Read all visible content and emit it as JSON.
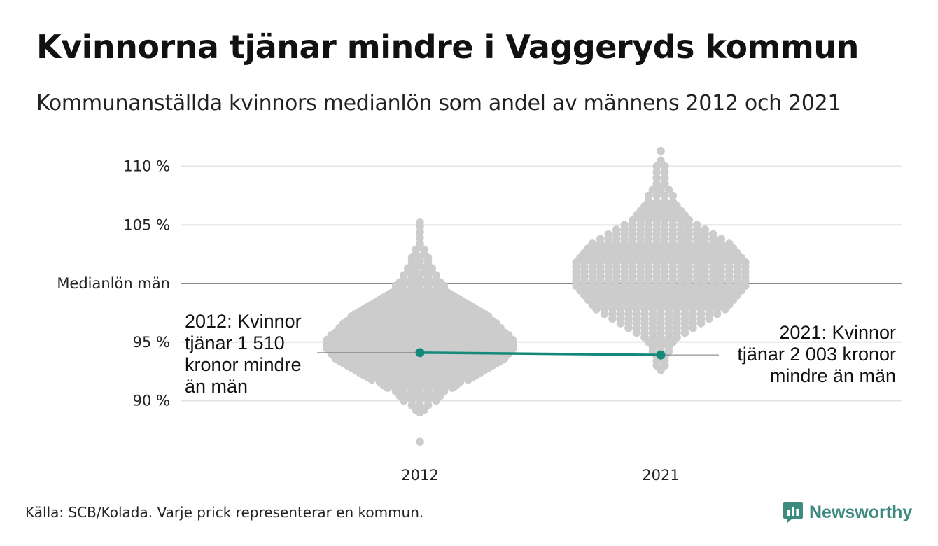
{
  "header": {
    "title": "Kvinnorna tjänar mindre i Vaggeryds kommun",
    "subtitle": "Kommunanställda kvinnors medianlön som andel av männens 2012 och 2021"
  },
  "footer": {
    "source": "Källa: SCB/Kolada. Varje prick representerar en kommun.",
    "brand": "Newsworthy",
    "brand_icon": "newsworthy-logo-icon",
    "brand_color": "#3d8a7e"
  },
  "chart_data": {
    "type": "scatter",
    "subtype": "beeswarm",
    "categories": [
      "2012",
      "2021"
    ],
    "y_axis": {
      "range": [
        86,
        111.5
      ],
      "ticks": [
        {
          "value": 90,
          "label": "90 %"
        },
        {
          "value": 95,
          "label": "95 %"
        },
        {
          "value": 100,
          "label": "Medianlön män"
        },
        {
          "value": 105,
          "label": "105 %"
        },
        {
          "value": 110,
          "label": "110 %"
        }
      ],
      "grid": true,
      "reference_line": 100
    },
    "highlight": {
      "municipality": "Vaggeryd",
      "color": "#14897a",
      "points": [
        {
          "x": "2012",
          "y": 94.1
        },
        {
          "x": "2021",
          "y": 93.9
        }
      ]
    },
    "annotations": [
      {
        "x": "2012",
        "lines": [
          "2012: Kvinnor",
          "tjänar 1 510",
          "kronor mindre",
          "än män"
        ]
      },
      {
        "x": "2021",
        "lines": [
          "2021: Kvinnor",
          "tjänar 2 003 kronor",
          "mindre än män"
        ]
      }
    ],
    "dot_color": "#cccccc",
    "series": [
      {
        "category": "2012",
        "values": [
          86.5,
          89.0,
          89.2,
          89.6,
          90.0,
          90.4,
          90.8,
          91.1,
          91.3,
          91.6,
          91.8,
          92.0,
          92.2,
          92.4,
          92.6,
          92.8,
          93.0,
          93.2,
          93.4,
          93.6,
          93.8,
          94.0,
          94.2,
          94.4,
          94.6,
          94.8,
          95.0,
          95.2,
          95.4,
          95.6,
          95.8,
          96.0,
          96.2,
          96.4,
          96.6,
          96.8,
          97.0,
          97.2,
          97.4,
          97.6,
          97.8,
          98.0,
          98.2,
          98.4,
          98.6,
          98.8,
          99.0,
          99.2,
          99.5,
          99.8,
          100.1,
          100.4,
          100.7,
          101.0,
          101.3,
          101.6,
          101.9,
          102.2,
          102.5,
          102.9,
          103.4,
          103.9,
          104.4,
          104.9,
          105.2
        ],
        "counts": [
          1,
          1,
          2,
          3,
          5,
          6,
          7,
          9,
          10,
          11,
          13,
          14,
          15,
          16,
          17,
          18,
          19,
          20,
          21,
          22,
          22,
          23,
          23,
          24,
          24,
          24,
          24,
          24,
          23,
          23,
          22,
          21,
          21,
          20,
          20,
          19,
          18,
          18,
          17,
          16,
          15,
          14,
          13,
          12,
          11,
          10,
          9,
          8,
          7,
          7,
          6,
          5,
          5,
          4,
          4,
          3,
          3,
          3,
          2,
          2,
          1,
          1,
          1,
          1,
          1
        ]
      },
      {
        "category": "2021",
        "values": [
          92.6,
          93.0,
          93.4,
          93.8,
          94.2,
          94.6,
          95.0,
          95.4,
          95.8,
          96.2,
          96.6,
          97.0,
          97.4,
          97.8,
          98.2,
          98.6,
          99.0,
          99.4,
          99.8,
          100.2,
          100.6,
          101.0,
          101.4,
          101.8,
          102.2,
          102.6,
          103.0,
          103.4,
          103.8,
          104.2,
          104.6,
          105.0,
          105.4,
          105.8,
          106.2,
          106.6,
          107.0,
          107.5,
          108.0,
          108.5,
          109.0,
          109.5,
          110.0,
          110.5,
          111.3
        ],
        "counts": [
          1,
          2,
          2,
          2,
          3,
          3,
          4,
          5,
          7,
          9,
          11,
          13,
          15,
          17,
          18,
          19,
          20,
          21,
          22,
          22,
          22,
          22,
          22,
          22,
          21,
          20,
          19,
          18,
          16,
          14,
          12,
          10,
          8,
          7,
          6,
          5,
          4,
          4,
          3,
          2,
          2,
          2,
          2,
          1,
          1
        ]
      }
    ]
  }
}
